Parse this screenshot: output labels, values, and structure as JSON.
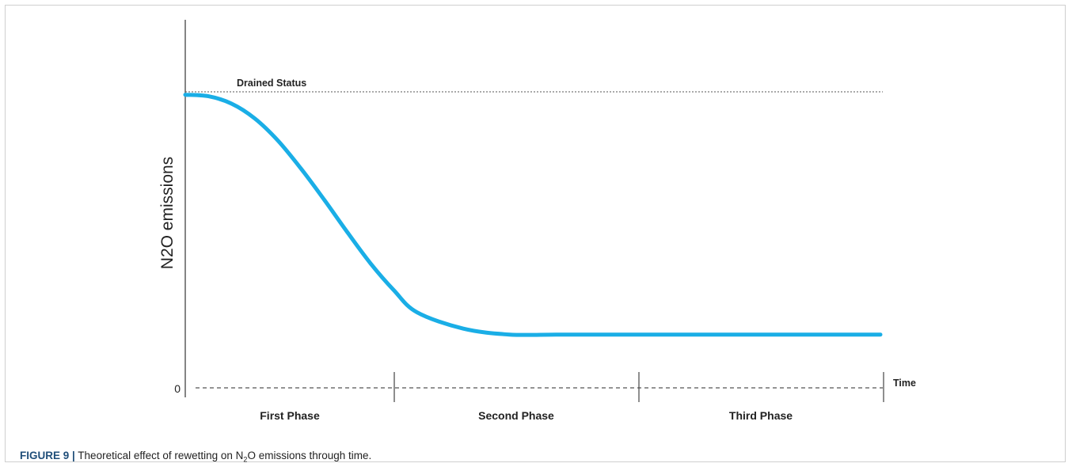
{
  "chart_data": {
    "type": "line",
    "ylabel": "N2O emissions",
    "xlabel": "Time",
    "origin_label": "0",
    "reference_line": {
      "label": "Drained Status",
      "value": 1.0
    },
    "phases": [
      "First Phase",
      "Second Phase",
      "Third Phase"
    ],
    "series": [
      {
        "color": "#1aaee6",
        "x": [
          0.0,
          0.1,
          0.2,
          0.3,
          0.4,
          0.5,
          0.6,
          0.7,
          0.8,
          0.9,
          1.0,
          1.2,
          1.4,
          1.6,
          1.8,
          2.0,
          2.2,
          2.4,
          2.6,
          2.8,
          3.0
        ],
        "y": [
          0.99,
          0.985,
          0.96,
          0.91,
          0.835,
          0.74,
          0.635,
          0.525,
          0.42,
          0.33,
          0.255,
          0.2,
          0.18,
          0.18,
          0.18,
          0.18,
          0.18,
          0.18,
          0.18,
          0.18,
          0.18
        ]
      }
    ],
    "xlim": [
      0,
      3
    ],
    "ylim": [
      0,
      1.15
    ]
  },
  "caption": {
    "figure_label": "FIGURE 9 |",
    "text_before": " Theoretical effect of rewetting on N",
    "subscript": "2",
    "text_after": "O emissions through time."
  }
}
